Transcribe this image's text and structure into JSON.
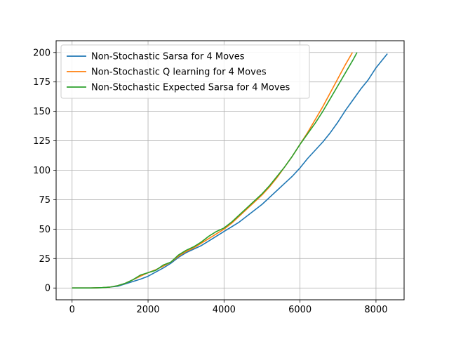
{
  "chart_data": {
    "type": "line",
    "title": "",
    "xlabel": "",
    "ylabel": "",
    "xlim": [
      -420,
      8740
    ],
    "ylim": [
      -10,
      210
    ],
    "x_ticks": [
      0,
      2000,
      4000,
      6000,
      8000
    ],
    "y_ticks": [
      0,
      25,
      50,
      75,
      100,
      125,
      150,
      175,
      200
    ],
    "x_tick_labels": [
      "0",
      "2000",
      "4000",
      "6000",
      "8000"
    ],
    "y_tick_labels": [
      "0",
      "25",
      "50",
      "75",
      "100",
      "125",
      "150",
      "175",
      "200"
    ],
    "grid": true,
    "legend_placement": "upper-left",
    "series": [
      {
        "name": "Non-Stochastic Sarsa for 4 Moves",
        "color": "#1f77b4",
        "x": [
          0,
          500,
          800,
          1000,
          1200,
          1400,
          1600,
          1800,
          2000,
          2200,
          2400,
          2600,
          2800,
          3000,
          3200,
          3400,
          3600,
          3800,
          4000,
          4200,
          4400,
          4600,
          4800,
          5000,
          5200,
          5400,
          5600,
          5800,
          6000,
          6200,
          6400,
          6600,
          6800,
          7000,
          7200,
          7400,
          7600,
          7800,
          8000,
          8300
        ],
        "y": [
          0,
          0,
          0.3,
          0.8,
          1.5,
          3.5,
          5.5,
          7.5,
          10,
          13.5,
          17,
          21,
          26,
          30,
          33,
          36,
          40,
          44,
          48,
          52,
          56,
          61,
          66,
          71,
          77,
          83,
          89,
          95,
          102,
          110,
          117,
          124,
          132,
          141,
          151,
          160,
          169,
          177,
          187,
          199
        ]
      },
      {
        "name": "Non-Stochastic Q learning for 4 Moves",
        "color": "#ff7f0e",
        "x": [
          0,
          500,
          800,
          1000,
          1200,
          1400,
          1600,
          1800,
          2000,
          2200,
          2400,
          2600,
          2800,
          3000,
          3200,
          3400,
          3600,
          3800,
          4000,
          4200,
          4400,
          4600,
          4800,
          5000,
          5200,
          5400,
          5600,
          5800,
          6000,
          6200,
          6400,
          6600,
          6800,
          7000,
          7200,
          7380
        ],
        "y": [
          0,
          0,
          0.3,
          0.8,
          2,
          4,
          7,
          10,
          13,
          15.5,
          18.5,
          22,
          27,
          31,
          34,
          38,
          42,
          46,
          50,
          55,
          61,
          67,
          73,
          79,
          86,
          94,
          103,
          112,
          122,
          132,
          143,
          154,
          166,
          178,
          190,
          200
        ]
      },
      {
        "name": "Non-Stochastic Expected Sarsa for 4 Moves",
        "color": "#2ca02c",
        "x": [
          0,
          500,
          800,
          1000,
          1200,
          1400,
          1600,
          1800,
          2000,
          2200,
          2400,
          2600,
          2800,
          3000,
          3200,
          3400,
          3600,
          3800,
          4000,
          4200,
          4400,
          4600,
          4800,
          5000,
          5200,
          5400,
          5600,
          5800,
          6000,
          6200,
          6400,
          6600,
          6800,
          7000,
          7200,
          7400,
          7500
        ],
        "y": [
          0,
          0,
          0.3,
          0.8,
          2,
          4,
          7,
          11,
          13,
          15,
          19.5,
          22,
          28,
          32,
          35,
          39,
          44,
          48,
          51,
          56,
          62,
          68,
          74,
          80,
          87,
          95,
          103,
          112,
          122,
          131,
          140,
          150,
          161,
          172,
          183,
          194,
          200
        ]
      }
    ]
  }
}
